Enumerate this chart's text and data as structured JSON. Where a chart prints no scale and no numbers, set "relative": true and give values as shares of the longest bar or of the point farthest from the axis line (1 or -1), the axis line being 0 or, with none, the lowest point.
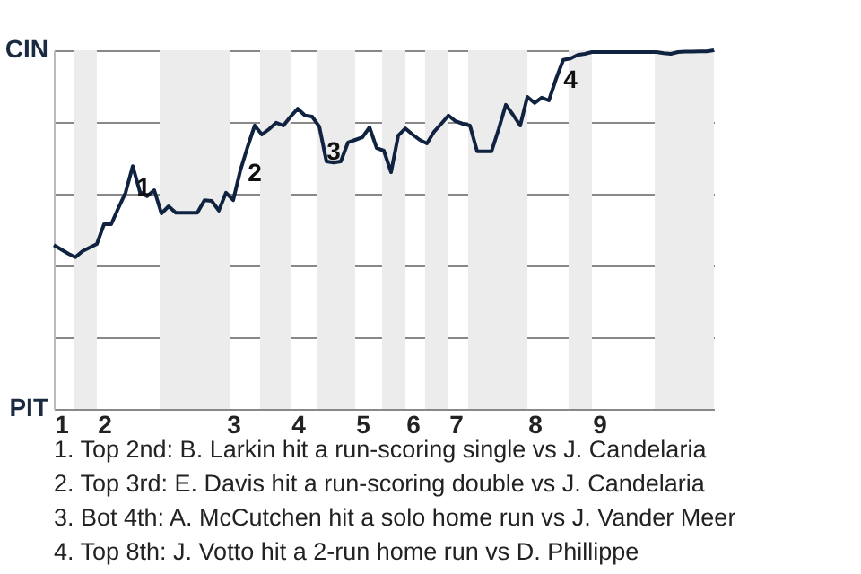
{
  "chart_data": {
    "type": "line",
    "relative": true,
    "categories": [
      null,
      "1",
      null,
      null,
      null,
      null,
      null,
      "2",
      null,
      null,
      null,
      null,
      null,
      null,
      null,
      null,
      null,
      null,
      null,
      null,
      null,
      null,
      null,
      null,
      null,
      "3",
      null,
      null,
      null,
      null,
      null,
      null,
      null,
      null,
      "4",
      null,
      null,
      null,
      null,
      null,
      null,
      null,
      null,
      "5",
      null,
      null,
      null,
      null,
      null,
      null,
      "6",
      null,
      null,
      null,
      null,
      null,
      "7",
      null,
      null,
      null,
      null,
      null,
      null,
      null,
      null,
      null,
      null,
      "8",
      null,
      null,
      null,
      null,
      null,
      null,
      null,
      null,
      "9",
      null,
      null,
      null,
      null,
      null,
      null,
      null,
      null,
      null,
      null,
      null,
      null,
      null,
      null,
      null,
      null
    ],
    "series": [
      {
        "color": "#0f2240",
        "values": [
          0.457,
          0.445,
          0.433,
          0.423,
          0.44,
          0.45,
          0.46,
          0.515,
          0.515,
          0.56,
          0.603,
          0.677,
          0.605,
          0.593,
          0.61,
          0.545,
          0.565,
          0.547,
          0.547,
          0.547,
          0.547,
          0.582,
          0.58,
          0.553,
          0.603,
          0.582,
          0.665,
          0.73,
          0.79,
          0.765,
          0.78,
          0.798,
          0.79,
          0.815,
          0.837,
          0.818,
          0.815,
          0.787,
          0.69,
          0.687,
          0.69,
          0.743,
          0.75,
          0.757,
          0.785,
          0.727,
          0.72,
          0.66,
          0.762,
          0.782,
          0.765,
          0.75,
          0.74,
          0.773,
          0.795,
          0.818,
          0.802,
          0.795,
          0.79,
          0.718,
          0.718,
          0.718,
          0.78,
          0.848,
          0.82,
          0.79,
          0.87,
          0.853,
          0.868,
          0.86,
          0.92,
          0.973,
          0.977,
          0.987,
          0.99,
          0.995,
          0.995,
          0.995,
          0.995,
          0.995,
          0.995,
          0.995,
          0.995,
          0.995,
          0.995,
          0.992,
          0.99,
          0.995,
          0.996,
          0.996,
          0.997,
          0.997,
          1.0
        ]
      }
    ],
    "grid": "y",
    "marker": "none",
    "annotations": [
      "CIN",
      "PIT",
      "1",
      "2",
      "3",
      "4",
      "1. Top 2nd: B. Larkin hit a run-scoring single vs J. Candelaria",
      "2. Top 3rd: E. Davis hit a run-scoring double vs J. Candelaria",
      "3. Bot 4th: A. McCutchen hit a solo home run vs J. Vander Meer",
      "4. Top 8th: J. Votto hit a 2-run home run vs D. Phillippe"
    ]
  }
}
